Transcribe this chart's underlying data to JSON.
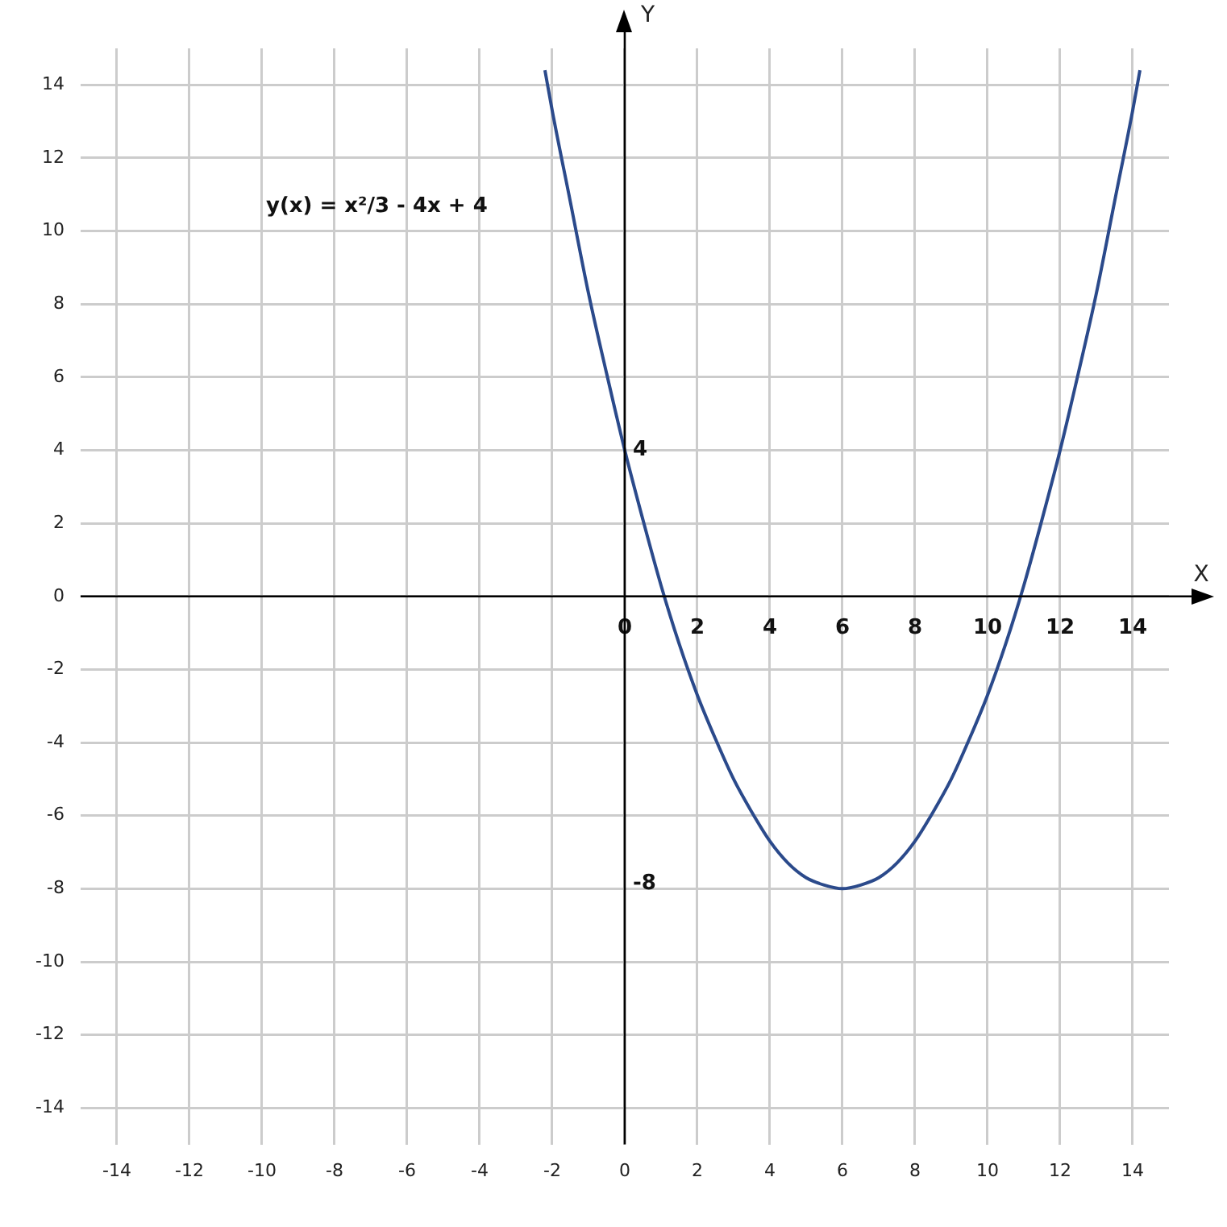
{
  "chart_data": {
    "type": "line",
    "xlabel": "X",
    "ylabel": "Y",
    "xlim": [
      -15,
      15
    ],
    "ylim": [
      -15,
      15
    ],
    "xticks": [
      -14,
      -12,
      -10,
      -8,
      -6,
      -4,
      -2,
      0,
      2,
      4,
      6,
      8,
      10,
      12,
      14
    ],
    "yticks": [
      -14,
      -12,
      -10,
      -8,
      -6,
      -4,
      -2,
      0,
      2,
      4,
      6,
      8,
      10,
      12,
      14
    ],
    "x2lim": [
      -15,
      15
    ],
    "x2ticks": [
      0,
      2,
      4,
      6,
      8,
      10,
      12,
      14
    ],
    "grid": true,
    "marker": "none",
    "line_style": "solid",
    "series": [
      {
        "color": "#2b4a8b",
        "x": [
          -2.2,
          -2,
          -1.5,
          -1,
          -0.5,
          0,
          0.5,
          1,
          1.5,
          2,
          2.5,
          3,
          3.5,
          4,
          4.5,
          5,
          5.5,
          6,
          6.5,
          7,
          7.5,
          8,
          8.5,
          9,
          9.5,
          10,
          10.5,
          11,
          11.5,
          12,
          12.5,
          13,
          13.5,
          14,
          14.2
        ],
        "values": [
          14.4,
          13.3,
          10.8,
          8.3,
          6.1,
          4,
          2.1,
          0.3,
          -1.3,
          -2.7,
          -3.9,
          -5,
          -5.9,
          -6.7,
          -7.3,
          -7.7,
          -7.9,
          -8,
          -7.9,
          -7.7,
          -7.3,
          -6.7,
          -5.9,
          -5,
          -3.9,
          -2.7,
          -1.3,
          0.3,
          2.1,
          4,
          6.1,
          8.3,
          10.8,
          13.3,
          14.4
        ]
      }
    ],
    "annotations": [
      "y(x) = x²/3 - 4x + 4",
      {
        "text": "4",
        "x": 0,
        "y": 4
      },
      "-8"
    ]
  }
}
